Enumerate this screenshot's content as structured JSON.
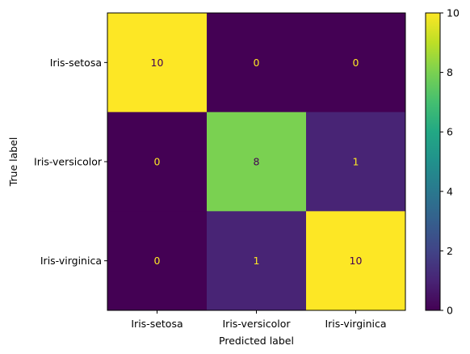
{
  "chart_data": {
    "type": "heatmap",
    "title": "",
    "xlabel": "Predicted label",
    "ylabel": "True label",
    "x_categories": [
      "Iris-setosa",
      "Iris-versicolor",
      "Iris-virginica"
    ],
    "y_categories": [
      "Iris-setosa",
      "Iris-versicolor",
      "Iris-virginica"
    ],
    "values": [
      [
        10,
        0,
        0
      ],
      [
        0,
        8,
        1
      ],
      [
        0,
        1,
        10
      ]
    ],
    "colormap": "viridis",
    "colorbar": {
      "ticks": [
        0,
        2,
        4,
        6,
        8,
        10
      ],
      "range": [
        0,
        10
      ]
    },
    "text_colors": {
      "low": "#fde725",
      "high": "#440154"
    }
  }
}
